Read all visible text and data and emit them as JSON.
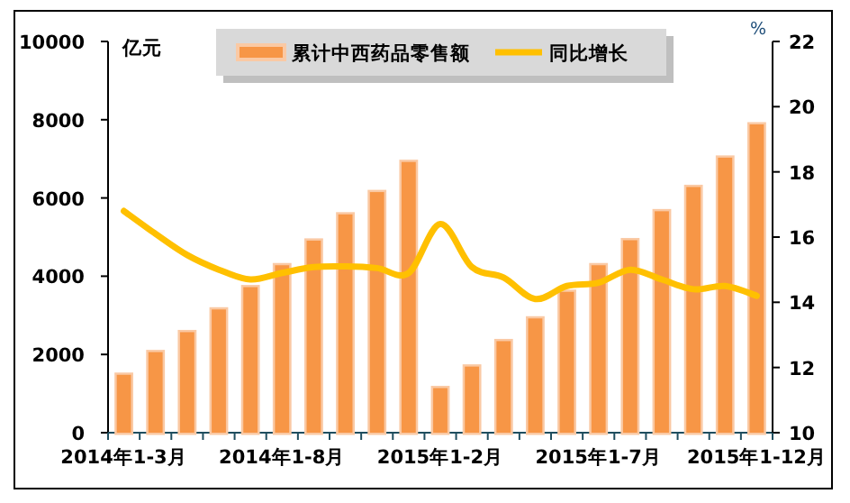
{
  "chart_data": {
    "type": "bar",
    "ylabel": "亿元",
    "y2label": "%",
    "categories": [
      "2014年1-3月",
      null,
      null,
      null,
      null,
      "2014年1-8月",
      null,
      null,
      null,
      null,
      "2015年1-2月",
      null,
      null,
      null,
      null,
      "2015年1-7月",
      null,
      null,
      null,
      null,
      "2015年1-12月"
    ],
    "series": [
      {
        "name": "累计中西药品零售额",
        "color": "#f79646",
        "values": [
          1480,
          2060,
          2570,
          3150,
          3720,
          4280,
          4910,
          5580,
          6150,
          6920,
          1140,
          1690,
          2340,
          2920,
          3600,
          4280,
          4920,
          5660,
          6280,
          7030,
          7880
        ]
      },
      {
        "name": "同比增长",
        "type": "line",
        "axis": "y2",
        "color": "#ffc000",
        "values": [
          16.8,
          16.1,
          15.45,
          15.0,
          14.7,
          14.9,
          15.08,
          15.1,
          15.05,
          14.9,
          16.4,
          15.08,
          14.76,
          14.1,
          14.5,
          14.6,
          15.0,
          14.7,
          14.4,
          14.5,
          14.2
        ]
      }
    ],
    "ylim": [
      0,
      10000
    ],
    "yticks": [
      0,
      2000,
      4000,
      6000,
      8000,
      10000
    ],
    "y2lim": [
      10,
      22
    ],
    "y2ticks": [
      10,
      12,
      14,
      16,
      18,
      20,
      22
    ],
    "grid": false,
    "legend": "top",
    "line_style": "solid"
  }
}
